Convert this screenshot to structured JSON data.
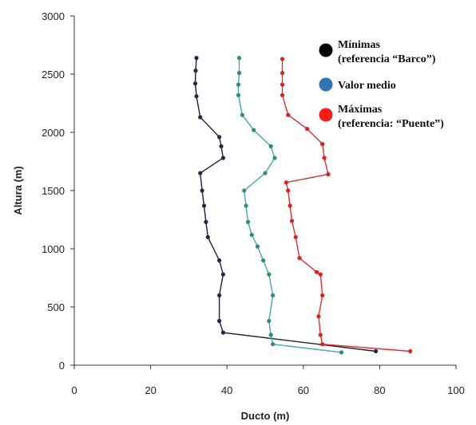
{
  "chart_data": {
    "type": "line",
    "xlabel": "Ducto (m)",
    "ylabel": "Altura (m)",
    "xlim": [
      0,
      100
    ],
    "ylim": [
      0,
      3000
    ],
    "xticks": [
      0,
      20,
      40,
      60,
      80,
      100
    ],
    "yticks": [
      0,
      500,
      1000,
      1500,
      2000,
      2500,
      3000
    ],
    "grid": false,
    "legend_position": "top-right",
    "series": [
      {
        "name": "Mínimas",
        "name_line2": "(referencia “Barco”)",
        "color": "#000000",
        "line_color": "#1b2230",
        "marker_color": "#1d2b4a",
        "legend_marker_color": "#000000",
        "points": [
          [
            79,
            120
          ],
          [
            39,
            280
          ],
          [
            38,
            380
          ],
          [
            38,
            600
          ],
          [
            39,
            780
          ],
          [
            38,
            900
          ],
          [
            35,
            1100
          ],
          [
            34.5,
            1230
          ],
          [
            34,
            1370
          ],
          [
            33.5,
            1500
          ],
          [
            33,
            1650
          ],
          [
            39,
            1780
          ],
          [
            38.5,
            1880
          ],
          [
            38,
            1960
          ],
          [
            33,
            2130
          ],
          [
            32,
            2310
          ],
          [
            31.7,
            2420
          ],
          [
            31.8,
            2530
          ],
          [
            32,
            2640
          ]
        ]
      },
      {
        "name": "Valor medio",
        "name_line2": "",
        "color": "#2e75b6",
        "line_color": "#4aa3b5",
        "marker_color": "#2e8c7e",
        "legend_marker_color": "#2e75b6",
        "points": [
          [
            70,
            110
          ],
          [
            52,
            180
          ],
          [
            51.5,
            260
          ],
          [
            51,
            380
          ],
          [
            52,
            600
          ],
          [
            51,
            780
          ],
          [
            49.5,
            900
          ],
          [
            48,
            1020
          ],
          [
            46.5,
            1120
          ],
          [
            45.5,
            1230
          ],
          [
            45,
            1370
          ],
          [
            44.5,
            1500
          ],
          [
            50,
            1650
          ],
          [
            52.5,
            1780
          ],
          [
            51.5,
            1880
          ],
          [
            47,
            2020
          ],
          [
            44,
            2150
          ],
          [
            43,
            2320
          ],
          [
            43,
            2410
          ],
          [
            43.2,
            2510
          ],
          [
            43.2,
            2640
          ]
        ]
      },
      {
        "name": "Máximas",
        "name_line2": "(referencia: “Puente”)",
        "color": "#e02020",
        "line_color": "#e03030",
        "marker_color": "#e02020",
        "legend_marker_color": "#ff1a1a",
        "points": [
          [
            88,
            120
          ],
          [
            65,
            180
          ],
          [
            64.5,
            260
          ],
          [
            64,
            420
          ],
          [
            65,
            600
          ],
          [
            64.5,
            780
          ],
          [
            63.5,
            800
          ],
          [
            59,
            920
          ],
          [
            58,
            1100
          ],
          [
            57,
            1240
          ],
          [
            56.5,
            1370
          ],
          [
            56,
            1500
          ],
          [
            55.5,
            1570
          ],
          [
            66.5,
            1640
          ],
          [
            65.5,
            1780
          ],
          [
            65,
            1900
          ],
          [
            61,
            2030
          ],
          [
            56,
            2150
          ],
          [
            54.5,
            2320
          ],
          [
            54.5,
            2410
          ],
          [
            54.5,
            2510
          ],
          [
            54.5,
            2630
          ]
        ]
      }
    ]
  }
}
